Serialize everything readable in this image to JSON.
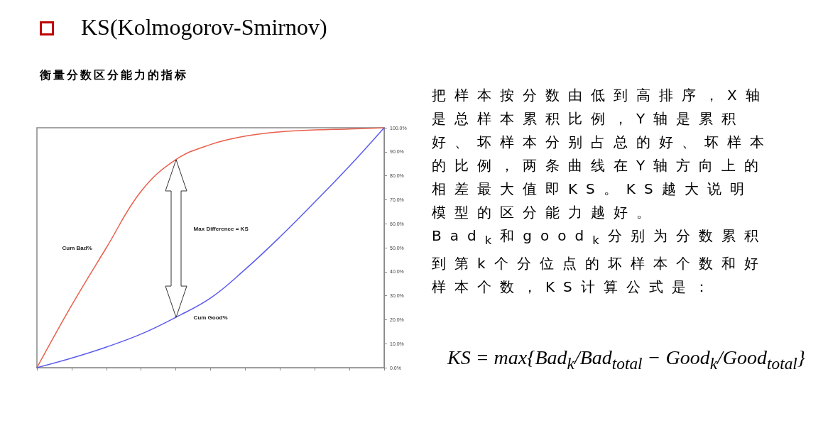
{
  "chart_data": {
    "type": "line",
    "title": "KS(Kolmogorov-Smirnov)",
    "subtitle": "衡量分数区分能力的指标",
    "categories": [
      null,
      null,
      null,
      null,
      null,
      null,
      null,
      null,
      null,
      null,
      null
    ],
    "series": [
      {
        "name": "Cum Bad%",
        "color": "#e8604c",
        "values": [
          0,
          26,
          50,
          73.5,
          86.7,
          93,
          96.5,
          98.3,
          99.1,
          99.5,
          100
        ]
      },
      {
        "name": "Cum Good%",
        "color": "#5b5bf0",
        "values": [
          0,
          4,
          8.6,
          14,
          21,
          29,
          41,
          54.5,
          69,
          84,
          100
        ]
      }
    ],
    "ylim": [
      0,
      100
    ],
    "yticks": [
      {
        "value": 0,
        "label": "0.0%"
      },
      {
        "value": 10,
        "label": "10.0%"
      },
      {
        "value": 20,
        "label": "20.0%"
      },
      {
        "value": 30,
        "label": "30.0%"
      },
      {
        "value": 40,
        "label": "40.0%"
      },
      {
        "value": 50,
        "label": "50.0%"
      },
      {
        "value": 60,
        "label": "60.0%"
      },
      {
        "value": 70,
        "label": "70.0%"
      },
      {
        "value": 80,
        "label": "80.0%"
      },
      {
        "value": 90,
        "label": "90.0%"
      },
      {
        "value": 100,
        "label": "100.0%"
      }
    ],
    "tick_labels": "y",
    "grid": false,
    "legend": false,
    "marker": "none",
    "line_style": "solid",
    "annotations": [
      "Max Difference = KS",
      "把样本按分数由低到高排序，X轴是总样本累积比例，Y轴是累积好、坏样本分别占总的好、坏样本的比例，两条曲线在Y轴方向上的相差最大值即KS。KS越大说明模型的区分能力越好。",
      "Bad$_{k}$和good$_{k}$分别为分数累积到第k个分位点的坏样本个数和好样本个数，KS计算公式是：",
      "KS = max{Bad$_{k}$/Bad$_{total}$ − Good$_{k}$/Good$_{total}$}"
    ]
  }
}
